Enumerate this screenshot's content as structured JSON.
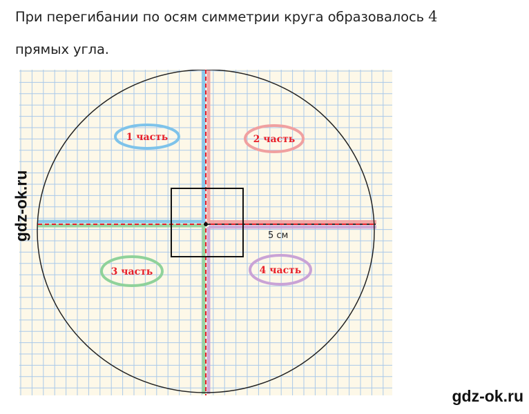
{
  "text": {
    "line1_before": "При перегибании по осям симметрии круга образовалось ",
    "line1_number": "4",
    "line2": "прямых угла."
  },
  "figure": {
    "parts": [
      {
        "label": "1 часть",
        "ring_color": "#7ec3ea"
      },
      {
        "label": "2 часть",
        "ring_color": "#f0a0a0"
      },
      {
        "label": "3 часть",
        "ring_color": "#8fd29a"
      },
      {
        "label": "4 часть",
        "ring_color": "#c9a3d6"
      }
    ],
    "radius_label": "5 см",
    "label_color": "#e8202a",
    "grid_color": "#a9c9ea",
    "paper_color": "#fdf8e8"
  },
  "watermarks": {
    "side": "gdz-ok.ru",
    "bottom": "gdz-ok.ru"
  }
}
